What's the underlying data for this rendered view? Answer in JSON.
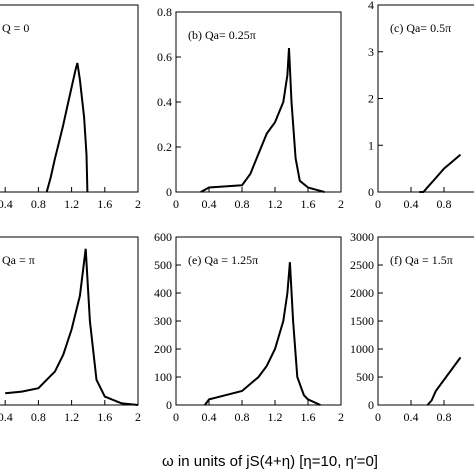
{
  "figure": {
    "xlabel": "ω in units of jS(4+η) [η=10, η′=0]"
  },
  "chart_data": [
    {
      "type": "line",
      "title": "Q = 0",
      "xlim": [
        0,
        2
      ],
      "ylim": [
        0,
        1
      ],
      "xticks": [
        0.4,
        0.8,
        1.2,
        1.6,
        2
      ],
      "x": [
        0.9,
        0.95,
        1.0,
        1.05,
        1.1,
        1.15,
        1.2,
        1.25,
        1.27,
        1.3,
        1.35,
        1.38,
        1.39
      ],
      "values": [
        0,
        0.08,
        0.18,
        0.27,
        0.36,
        0.46,
        0.56,
        0.66,
        0.69,
        0.6,
        0.4,
        0.2,
        0
      ]
    },
    {
      "type": "line",
      "title": "(b) Qa= 0.25π",
      "xlim": [
        0,
        2
      ],
      "ylim": [
        0,
        0.8
      ],
      "xticks": [
        0,
        0.4,
        0.8,
        1.2,
        1.6,
        2
      ],
      "yticks": [
        0,
        0.2,
        0.4,
        0.6,
        0.8
      ],
      "x": [
        0.3,
        0.4,
        0.6,
        0.8,
        0.9,
        1.0,
        1.1,
        1.2,
        1.3,
        1.35,
        1.37,
        1.4,
        1.45,
        1.5,
        1.6,
        1.7,
        1.8
      ],
      "values": [
        0,
        0.02,
        0.025,
        0.03,
        0.08,
        0.17,
        0.26,
        0.31,
        0.4,
        0.52,
        0.64,
        0.4,
        0.15,
        0.05,
        0.02,
        0.01,
        0
      ]
    },
    {
      "type": "line",
      "title": "(c) Qa= 0.5π",
      "xlim": [
        0,
        2
      ],
      "ylim": [
        0,
        4
      ],
      "xticks": [
        0,
        0.4,
        0.8
      ],
      "yticks": [
        0,
        1,
        2,
        3,
        4
      ],
      "x": [
        0.5,
        0.55,
        0.6,
        0.7,
        0.8,
        0.9,
        1.0
      ],
      "values": [
        0,
        0,
        0.1,
        0.3,
        0.5,
        0.65,
        0.8
      ]
    },
    {
      "type": "line",
      "title": "Qa = π",
      "xlim": [
        0,
        2
      ],
      "ylim": [
        0,
        1
      ],
      "xticks": [
        0.4,
        0.8,
        1.2,
        1.6,
        2
      ],
      "x": [
        0.4,
        0.6,
        0.8,
        1.0,
        1.1,
        1.2,
        1.3,
        1.37,
        1.42,
        1.5,
        1.6,
        1.8,
        2
      ],
      "values": [
        0.07,
        0.08,
        0.1,
        0.2,
        0.3,
        0.45,
        0.65,
        0.93,
        0.5,
        0.15,
        0.05,
        0.01,
        0
      ]
    },
    {
      "type": "line",
      "title": "(e) Qa = 1.25π",
      "xlim": [
        0,
        2
      ],
      "ylim": [
        0,
        600
      ],
      "xticks": [
        0,
        0.4,
        0.8,
        1.2,
        1.6,
        2
      ],
      "yticks": [
        0,
        100,
        200,
        300,
        400,
        500,
        600
      ],
      "x": [
        0.35,
        0.4,
        0.6,
        0.8,
        1.0,
        1.1,
        1.2,
        1.3,
        1.35,
        1.38,
        1.42,
        1.47,
        1.55,
        1.6,
        1.75
      ],
      "values": [
        0,
        20,
        35,
        50,
        100,
        140,
        200,
        300,
        400,
        510,
        300,
        100,
        35,
        20,
        0
      ]
    },
    {
      "type": "line",
      "title": "(f) Qa = 1.5π",
      "xlim": [
        0,
        2
      ],
      "ylim": [
        0,
        3000
      ],
      "xticks": [
        0,
        0.4,
        0.8
      ],
      "yticks": [
        0,
        500,
        1000,
        1500,
        2000,
        2500,
        3000
      ],
      "x": [
        0.6,
        0.65,
        0.7,
        0.8,
        0.9,
        1.0
      ],
      "values": [
        0,
        80,
        250,
        450,
        650,
        850
      ]
    }
  ]
}
